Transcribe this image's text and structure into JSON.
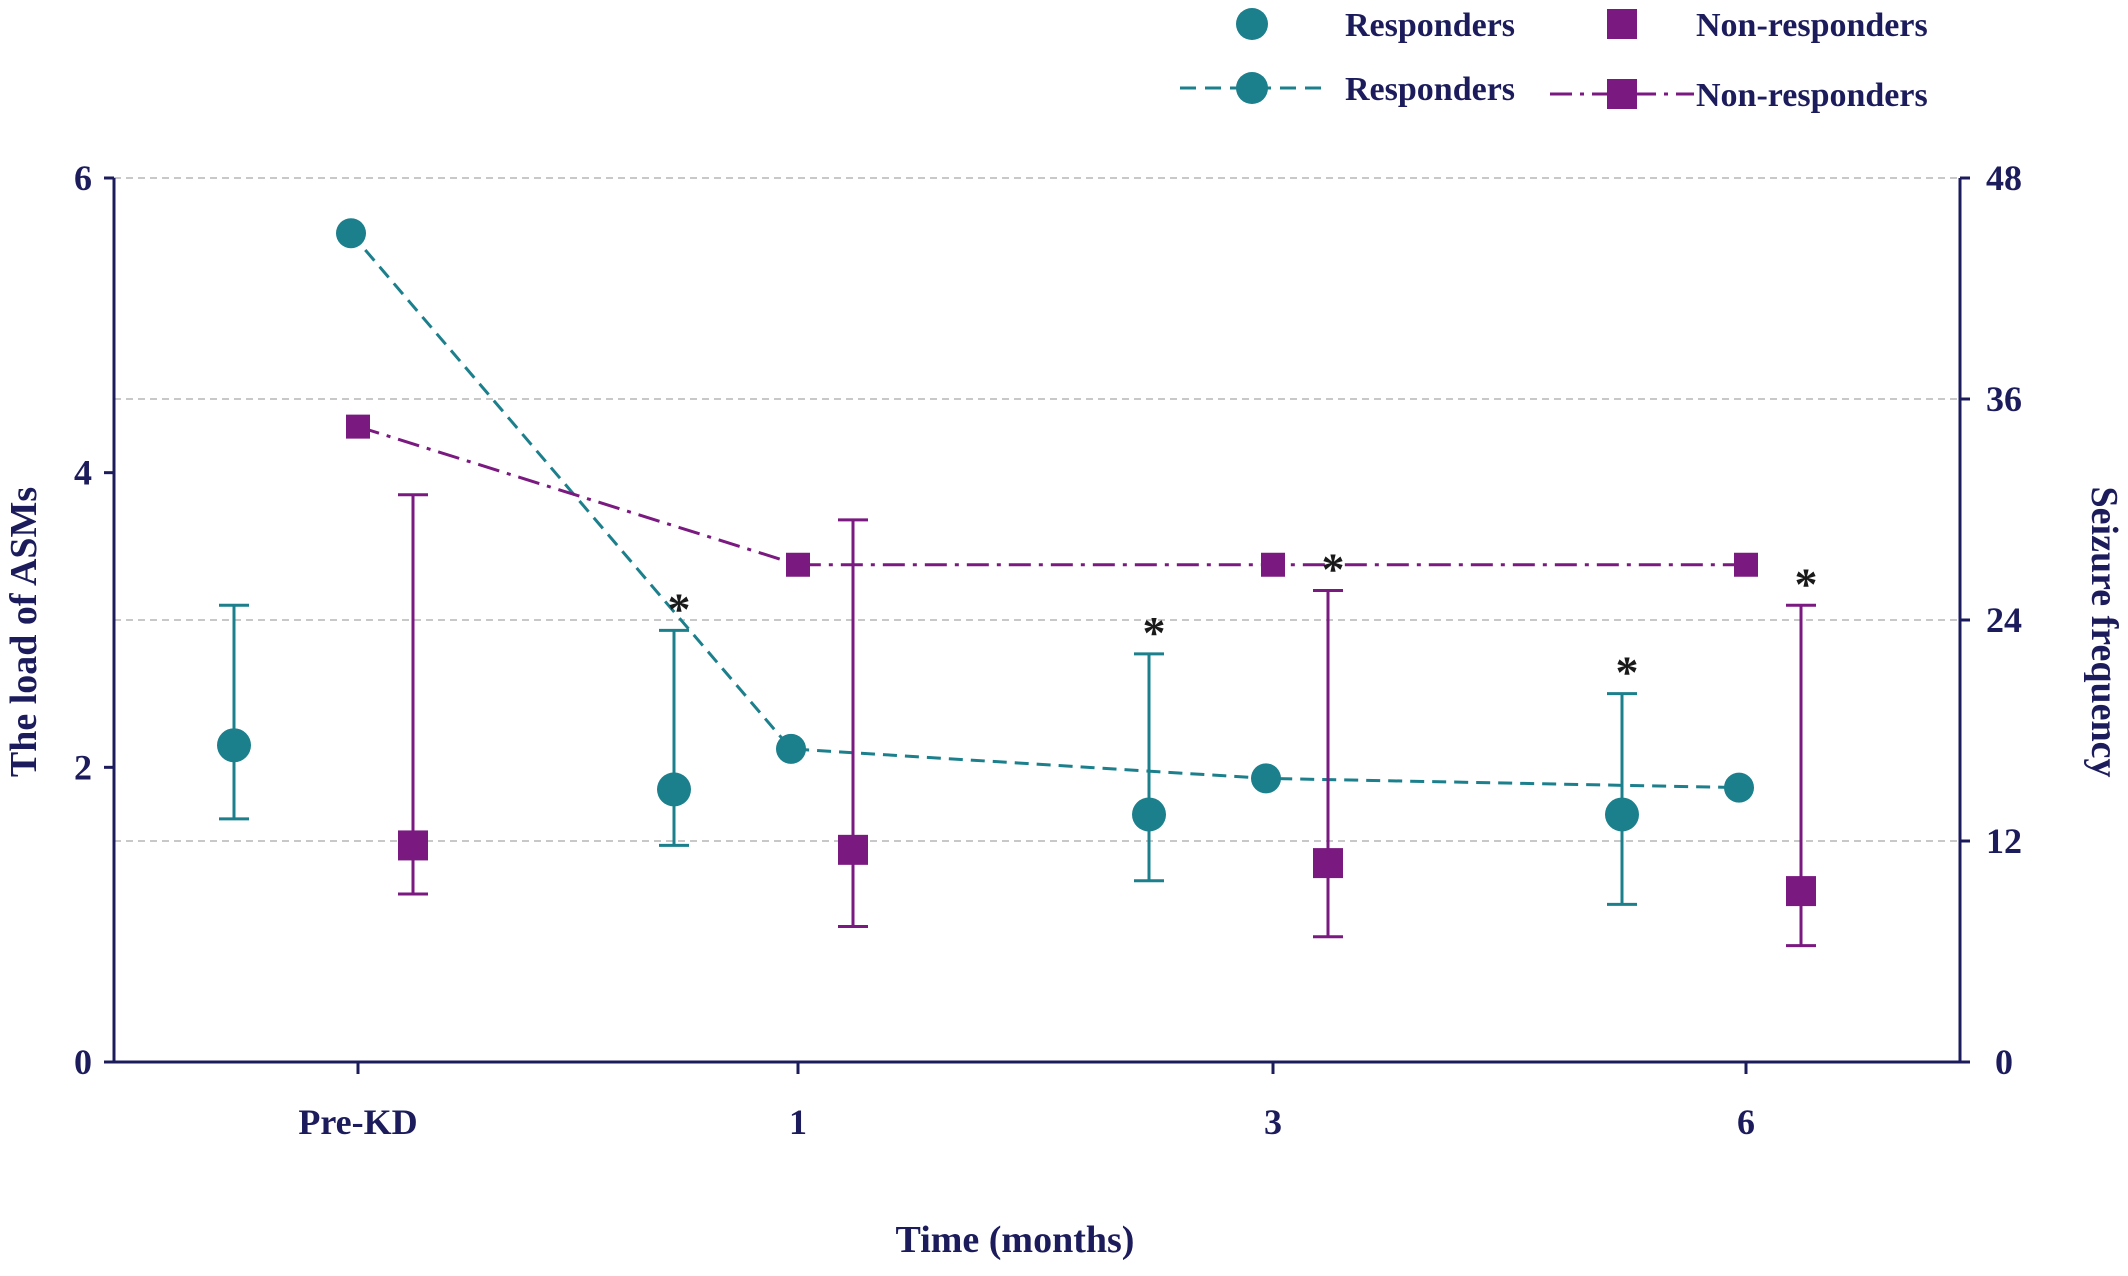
{
  "chart_data": {
    "type": "line",
    "xlabel": "Time (months)",
    "ylabel_left": "The load of ASMs",
    "ylabel_right": "Seizure frequency",
    "categories": [
      "Pre-KD",
      "1",
      "3",
      "6"
    ],
    "y_left": {
      "min": 0,
      "max": 6,
      "ticks": [
        "0",
        "2",
        "4",
        "6"
      ]
    },
    "y_right": {
      "min": 0,
      "max": 48,
      "ticks": [
        "0",
        "12",
        "24",
        "36",
        "48"
      ]
    },
    "grid": true,
    "legend_position": "top-right",
    "colors": {
      "responders": "#1b7f8c",
      "non_responders": "#7a1a80",
      "axis": "#1c1c5c",
      "grid": "#c8c8c8"
    },
    "legend": [
      {
        "label": "Responders",
        "marker": "circle",
        "line": "none",
        "series": "responders"
      },
      {
        "label": "Non-responders",
        "marker": "square",
        "line": "none",
        "series": "non_responders"
      },
      {
        "label": "Responders",
        "marker": "circle",
        "line": "dashed",
        "series": "responders"
      },
      {
        "label": "Non-responders",
        "marker": "square",
        "line": "dashdot",
        "series": "non_responders"
      }
    ],
    "series": [
      {
        "name": "Responders",
        "kind": "scatter-errorbar",
        "axis": "left",
        "series": "responders",
        "points": [
          {
            "category": "Pre-KD",
            "value": 2.15,
            "err_low": 1.65,
            "err_high": 3.1,
            "marked": false
          },
          {
            "category": "1",
            "value": 1.85,
            "err_low": 1.47,
            "err_high": 2.93,
            "marked": true
          },
          {
            "category": "3",
            "value": 1.68,
            "err_low": 1.23,
            "err_high": 2.77,
            "marked": true
          },
          {
            "category": "6",
            "value": 1.68,
            "err_low": 1.07,
            "err_high": 2.5,
            "marked": true
          }
        ]
      },
      {
        "name": "Non-responders",
        "kind": "scatter-errorbar",
        "axis": "left",
        "series": "non_responders",
        "points": [
          {
            "category": "Pre-KD",
            "value": 1.47,
            "err_low": 1.14,
            "err_high": 3.85,
            "marked": false
          },
          {
            "category": "1",
            "value": 1.44,
            "err_low": 0.92,
            "err_high": 3.68,
            "marked": false
          },
          {
            "category": "3",
            "value": 1.35,
            "err_low": 0.85,
            "err_high": 3.2,
            "marked": true
          },
          {
            "category": "6",
            "value": 1.16,
            "err_low": 0.79,
            "err_high": 3.1,
            "marked": true
          }
        ]
      },
      {
        "name": "Responders",
        "kind": "line",
        "axis": "right",
        "series": "responders",
        "points": [
          {
            "category": "Pre-KD",
            "value": 45
          },
          {
            "category": "1",
            "value": 17
          },
          {
            "category": "3",
            "value": 15.4
          },
          {
            "category": "6",
            "value": 14.9
          }
        ]
      },
      {
        "name": "Non-responders",
        "kind": "line",
        "axis": "right",
        "series": "non_responders",
        "points": [
          {
            "category": "Pre-KD",
            "value": 34.5
          },
          {
            "category": "1",
            "value": 27
          },
          {
            "category": "3",
            "value": 27
          },
          {
            "category": "6",
            "value": 27
          }
        ]
      }
    ],
    "annotation_symbol": "*"
  }
}
